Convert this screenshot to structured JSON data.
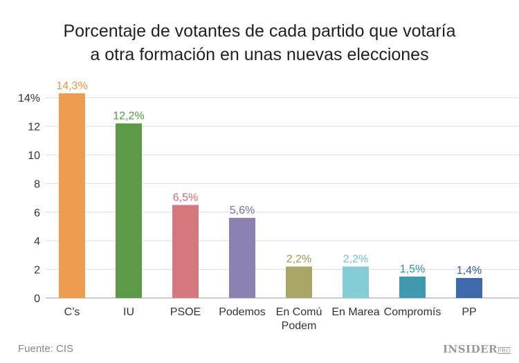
{
  "chart_data": {
    "type": "bar",
    "title": [
      "Porcentaje de votantes de cada partido que votaría",
      "a otra formación en unas nuevas elecciones"
    ],
    "categories": [
      [
        "C’s"
      ],
      [
        "IU"
      ],
      [
        "PSOE"
      ],
      [
        "Podemos"
      ],
      [
        "En Comú",
        "Podem"
      ],
      [
        "En Marea"
      ],
      [
        "Compromís"
      ],
      [
        "PP"
      ]
    ],
    "values": [
      14.3,
      12.2,
      6.5,
      5.6,
      2.2,
      2.2,
      1.5,
      1.4
    ],
    "data_labels": [
      "14,3%",
      "12,2%",
      "6,5%",
      "5,6%",
      "2,2%",
      "2,2%",
      "1,5%",
      "1,4%"
    ],
    "colors": [
      "#ee9d4f",
      "#5c9a48",
      "#d4787c",
      "#8c80b0",
      "#a9a765",
      "#84ccd6",
      "#3f9aae",
      "#3e69aa"
    ],
    "label_colors": [
      "#ee9440",
      "#4f9a3a",
      "#d06a70",
      "#7d70a8",
      "#9c9a50",
      "#6cc4d0",
      "#2f8fa5",
      "#2f5ca0"
    ],
    "yticks": [
      0,
      2,
      4,
      6,
      8,
      10,
      12,
      14
    ],
    "ytick_labels": [
      "0",
      "2",
      "4",
      "6",
      "8",
      "10",
      "12",
      "14%"
    ],
    "ylim": [
      0,
      14.3
    ],
    "grid": true
  },
  "footer": {
    "source": "Fuente: CIS",
    "logo": "INSIDER",
    "logo_sub": "PRO"
  }
}
